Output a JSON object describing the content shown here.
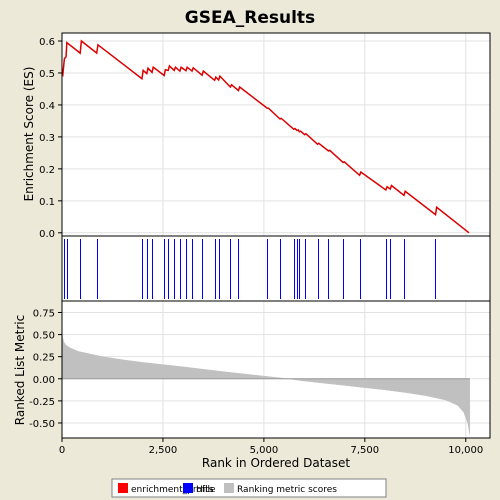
{
  "chart_data": {
    "type": "line",
    "title": "GSEA_Results",
    "xlabel": "Rank in Ordered Dataset",
    "x_ticks": [
      0,
      2500,
      5000,
      7500,
      10000
    ],
    "x_tick_labels": [
      "0",
      "2,500",
      "5,000",
      "7,500",
      "10,000"
    ],
    "xlim": [
      0,
      10600
    ],
    "top_panel": {
      "ylabel": "Enrichment Score (ES)",
      "ylim": [
        -0.01,
        0.625
      ],
      "y_ticks": [
        0.0,
        0.1,
        0.2,
        0.3,
        0.4,
        0.5,
        0.6
      ],
      "y_tick_labels": [
        "0.0",
        "0.1",
        "0.2",
        "0.3",
        "0.4",
        "0.5",
        "0.6"
      ],
      "grid": true,
      "series_name": "enrichment_profile",
      "x": [
        0,
        20,
        60,
        100,
        120,
        450,
        480,
        860,
        890,
        1980,
        2010,
        2100,
        2130,
        2230,
        2260,
        2530,
        2560,
        2630,
        2660,
        2780,
        2810,
        2920,
        2950,
        3070,
        3100,
        3220,
        3250,
        3470,
        3500,
        3780,
        3810,
        3880,
        3910,
        4170,
        4200,
        4370,
        4400,
        5080,
        5110,
        5400,
        5430,
        5740,
        5770,
        5820,
        5850,
        5880,
        5910,
        6010,
        6040,
        6330,
        6360,
        6600,
        6630,
        6960,
        6990,
        7370,
        7400,
        8020,
        8050,
        8130,
        8160,
        8470,
        8500,
        9250,
        9280,
        10080
      ],
      "y": [
        0.5,
        0.495,
        0.545,
        0.55,
        0.595,
        0.562,
        0.6,
        0.562,
        0.588,
        0.482,
        0.508,
        0.498,
        0.515,
        0.502,
        0.518,
        0.492,
        0.51,
        0.508,
        0.522,
        0.508,
        0.518,
        0.506,
        0.518,
        0.507,
        0.518,
        0.506,
        0.516,
        0.493,
        0.506,
        0.477,
        0.487,
        0.478,
        0.49,
        0.456,
        0.463,
        0.445,
        0.456,
        0.39,
        0.39,
        0.356,
        0.358,
        0.324,
        0.326,
        0.32,
        0.322,
        0.316,
        0.318,
        0.307,
        0.31,
        0.277,
        0.28,
        0.256,
        0.258,
        0.22,
        0.222,
        0.18,
        0.19,
        0.134,
        0.144,
        0.137,
        0.148,
        0.117,
        0.13,
        0.057,
        0.08,
        0.0
      ]
    },
    "hits_panel": {
      "series_name": "Hits",
      "positions": [
        60,
        120,
        450,
        860,
        1980,
        2100,
        2230,
        2530,
        2630,
        2780,
        2920,
        3070,
        3220,
        3470,
        3780,
        3880,
        4170,
        4370,
        5080,
        5400,
        5740,
        5820,
        5880,
        6010,
        6330,
        6600,
        6960,
        7370,
        8020,
        8130,
        8470,
        9250
      ]
    },
    "bottom_panel": {
      "ylabel": "Ranked List Metric",
      "ylim": [
        -0.67,
        0.88
      ],
      "y_ticks": [
        -0.5,
        -0.25,
        0.0,
        0.25,
        0.5,
        0.75
      ],
      "y_tick_labels": [
        "-0.50",
        "-0.25",
        "0.00",
        "0.25",
        "0.50",
        "0.75"
      ],
      "grid": true,
      "series_name": "Ranking metric scores",
      "x": [
        0,
        10,
        40,
        100,
        200,
        400,
        700,
        1000,
        1500,
        2000,
        3000,
        4000,
        5000,
        5500,
        6000,
        7000,
        8000,
        8500,
        9000,
        9500,
        9800,
        9950,
        10050,
        10100
      ],
      "y": [
        0.52,
        0.48,
        0.42,
        0.38,
        0.35,
        0.31,
        0.28,
        0.25,
        0.215,
        0.185,
        0.135,
        0.08,
        0.03,
        0.005,
        -0.025,
        -0.075,
        -0.125,
        -0.155,
        -0.19,
        -0.24,
        -0.3,
        -0.38,
        -0.5,
        -0.63
      ]
    },
    "legend": {
      "placement": "bottom",
      "entries": [
        {
          "label": "enrichment_profile",
          "color": "#ff0000"
        },
        {
          "label": "Hits",
          "color": "#0000ff"
        },
        {
          "label": "Ranking metric scores",
          "color": "#c0c0c0"
        }
      ]
    },
    "colors": {
      "profile": "#dd0000",
      "hits": "#0000ff",
      "metric": "#c0c0c0",
      "grid": "#e2e2e2",
      "background": "#ece9d8"
    }
  }
}
